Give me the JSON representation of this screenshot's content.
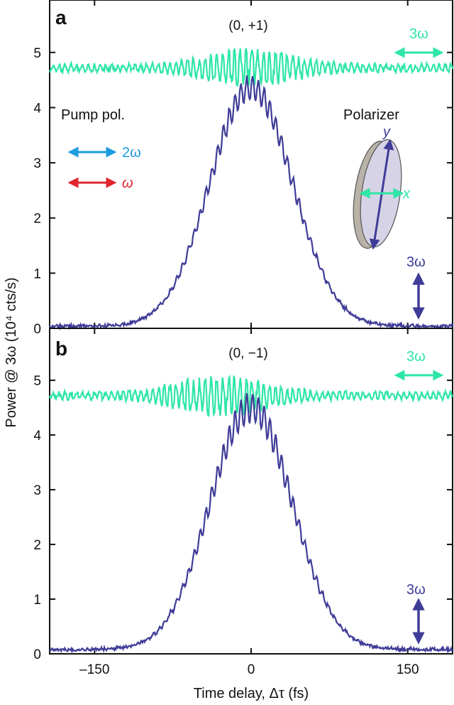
{
  "figure": {
    "ylabel": "Power @ 3ω (10⁴ cts/s)",
    "xlabel": "Time delay, Δτ (fs)",
    "x_ticks": [
      "–150",
      "0",
      "150"
    ],
    "y_ticks": [
      "0",
      "1",
      "2",
      "3",
      "4",
      "5"
    ]
  },
  "colors": {
    "green": "#2ee6a6",
    "purple": "#3f3c98",
    "blue": "#1d9be0",
    "red": "#e0262f",
    "polarizer_edge": "#b8b2a7",
    "polarizer_face": "#d6d3e6"
  },
  "annotations": {
    "pump_pol": "Pump pol.",
    "two_omega": "2ω",
    "omega": "ω",
    "polarizer": "Polarizer",
    "axis_y": "y",
    "axis_x": "x",
    "three_omega": "3ω"
  },
  "chart_data": [
    {
      "type": "line",
      "panel": "a",
      "title": "(0, +1)",
      "xlabel": "Time delay, Δτ (fs)",
      "ylabel": "Power @ 3ω (10⁴ cts/s)",
      "xlim": [
        -193,
        193
      ],
      "ylim": [
        0,
        5.95
      ],
      "x_ticks": [
        -150,
        0,
        150
      ],
      "y_ticks": [
        0,
        1,
        2,
        3,
        4,
        5
      ],
      "series": [
        {
          "name": "3ω (x-polarized)",
          "color": "#2ee6a6",
          "model": {
            "kind": "flat",
            "base": 4.72,
            "noise": 0.06,
            "fringe_amp_center": 0.28,
            "fringe_width": 40,
            "fringe_period": 5.6
          },
          "x": [
            -193,
            -150,
            -100,
            -50,
            -20,
            0,
            20,
            50,
            100,
            150,
            193
          ],
          "y": [
            4.72,
            4.72,
            4.72,
            4.74,
            4.78,
            4.76,
            4.8,
            4.72,
            4.72,
            4.7,
            4.72
          ]
        },
        {
          "name": "3ω (y-polarized)",
          "color": "#3f3c98",
          "model": {
            "kind": "gaussian",
            "amplitude": 4.32,
            "center": 0,
            "sigma": 39.5,
            "floor": 0.04,
            "fringe_frac": 0.05,
            "fringe_period": 5.6,
            "noise": 0.02
          },
          "x": [
            -193,
            -150,
            -100,
            -75,
            -50,
            -25,
            0,
            25,
            50,
            75,
            100,
            150,
            193
          ],
          "y": [
            0.04,
            0.12,
            0.18,
            1.25,
            2.05,
            3.55,
            4.36,
            3.55,
            2.05,
            1.25,
            0.18,
            0.06,
            0.04
          ]
        }
      ]
    },
    {
      "type": "line",
      "panel": "b",
      "title": "(0, −1)",
      "xlabel": "Time delay, Δτ (fs)",
      "ylabel": "Power @ 3ω (10⁴ cts/s)",
      "xlim": [
        -193,
        193
      ],
      "ylim": [
        0,
        5.95
      ],
      "x_ticks": [
        -150,
        0,
        150
      ],
      "y_ticks": [
        0,
        1,
        2,
        3,
        4,
        5
      ],
      "series": [
        {
          "name": "3ω (x-polarized)",
          "color": "#2ee6a6",
          "model": {
            "kind": "flat",
            "base": 4.72,
            "noise": 0.06,
            "fringe_amp_center": 0.3,
            "fringe_width": 40,
            "fringe_period": 5.6,
            "center": -30
          },
          "x": [
            -193,
            -150,
            -100,
            -60,
            -30,
            0,
            30,
            100,
            150,
            193
          ],
          "y": [
            4.72,
            4.72,
            4.74,
            4.95,
            4.78,
            4.7,
            4.72,
            4.72,
            4.72,
            4.72
          ]
        },
        {
          "name": "3ω (y-polarized)",
          "color": "#3f3c98",
          "model": {
            "kind": "gaussian",
            "amplitude": 4.42,
            "center": 0,
            "sigma": 39.5,
            "floor": 0.08,
            "fringe_frac": 0.06,
            "fringe_period": 5.6,
            "noise": 0.02
          },
          "x": [
            -193,
            -150,
            -100,
            -75,
            -50,
            -25,
            0,
            25,
            50,
            75,
            100,
            150,
            193
          ],
          "y": [
            0.1,
            0.16,
            0.28,
            1.25,
            2.15,
            3.65,
            4.5,
            3.65,
            2.15,
            1.25,
            0.28,
            0.12,
            0.08
          ]
        }
      ]
    }
  ]
}
